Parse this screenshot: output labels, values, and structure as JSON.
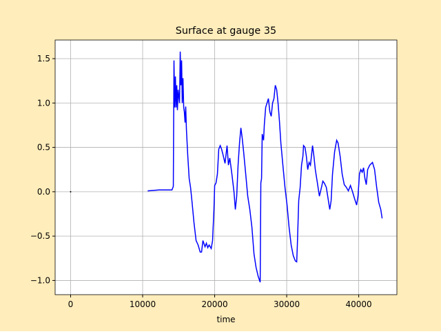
{
  "chart_data": {
    "type": "line",
    "title": "Surface at gauge 35",
    "x_label": "time",
    "xlim": [
      -2150,
      45300
    ],
    "ylim": [
      -1.16,
      1.71
    ],
    "xticks": [
      0,
      10000,
      20000,
      30000,
      40000
    ],
    "yticks": [
      {
        "value": -1.0,
        "label": "−1.0"
      },
      {
        "value": -0.5,
        "label": "−0.5"
      },
      {
        "value": 0.0,
        "label": "0.0"
      },
      0.5,
      {
        "value": 1.0,
        "label": "1.0"
      },
      1.5
    ],
    "grid": true,
    "series": [
      {
        "color": "#0000ff",
        "x": [
          10700,
          12250,
          13780,
          14070,
          14260,
          14350,
          14450,
          14550,
          14640,
          14740,
          14830,
          14930,
          15120,
          15220,
          15310,
          15410,
          15500,
          15600,
          15700,
          15790,
          15890,
          15980,
          16080,
          16270,
          16460,
          16650,
          16840,
          17130,
          17420,
          17700,
          17990,
          18180,
          18370,
          18660,
          18850,
          19040,
          19230,
          19520,
          19710,
          19900,
          20000,
          20190,
          20380,
          20570,
          20770,
          20960,
          21150,
          21440,
          21720,
          21910,
          22100,
          22390,
          22680,
          22870,
          23060,
          23250,
          23450,
          23640,
          23830,
          24020,
          24310,
          24590,
          24880,
          25170,
          25460,
          25740,
          26030,
          26320,
          26410,
          26510,
          26600,
          26790,
          26890,
          27080,
          27270,
          27460,
          27660,
          27850,
          28040,
          28230,
          28420,
          28610,
          28800,
          28990,
          29190,
          29470,
          29760,
          30050,
          30330,
          30620,
          30910,
          31200,
          31390,
          31480,
          31670,
          31870,
          32060,
          32250,
          32340,
          32540,
          32730,
          32920,
          33110,
          33300,
          33590,
          33780,
          33970,
          34260,
          34540,
          34830,
          35020,
          35210,
          35500,
          35790,
          35980,
          36170,
          36360,
          36650,
          36940,
          37130,
          37420,
          37700,
          37990,
          38280,
          38560,
          38850,
          39140,
          39430,
          39710,
          39900,
          40100,
          40290,
          40480,
          40670,
          40860,
          41050,
          41240,
          41530,
          41910,
          42200,
          42490,
          42780,
          43060,
          43250
        ],
        "values": [
          0.01,
          0.02,
          0.02,
          0.02,
          0.06,
          1.48,
          0.95,
          1.3,
          0.95,
          1.2,
          0.92,
          1.15,
          1.0,
          1.58,
          1.2,
          1.48,
          1.0,
          1.28,
          0.95,
          0.9,
          0.78,
          0.96,
          0.7,
          0.4,
          0.15,
          0.05,
          -0.1,
          -0.35,
          -0.55,
          -0.6,
          -0.68,
          -0.68,
          -0.55,
          -0.62,
          -0.58,
          -0.63,
          -0.6,
          -0.64,
          -0.55,
          -0.2,
          0.07,
          0.1,
          0.2,
          0.48,
          0.52,
          0.48,
          0.42,
          0.32,
          0.52,
          0.3,
          0.38,
          0.2,
          0.0,
          -0.2,
          -0.05,
          0.3,
          0.55,
          0.72,
          0.6,
          0.45,
          0.2,
          -0.05,
          -0.2,
          -0.4,
          -0.7,
          -0.85,
          -0.95,
          -1.02,
          0.1,
          0.15,
          0.65,
          0.58,
          0.75,
          0.95,
          1.0,
          1.05,
          0.9,
          0.85,
          1.0,
          1.05,
          1.2,
          1.15,
          1.0,
          0.8,
          0.55,
          0.3,
          0.05,
          -0.15,
          -0.4,
          -0.6,
          -0.72,
          -0.78,
          -0.79,
          -0.6,
          -0.1,
          0.05,
          0.3,
          0.4,
          0.52,
          0.5,
          0.4,
          0.25,
          0.33,
          0.3,
          0.52,
          0.4,
          0.25,
          0.1,
          -0.05,
          0.05,
          0.12,
          0.1,
          0.05,
          -0.1,
          -0.2,
          -0.1,
          0.2,
          0.45,
          0.58,
          0.55,
          0.4,
          0.2,
          0.08,
          0.05,
          0.01,
          0.07,
          0.0,
          -0.08,
          -0.15,
          -0.05,
          0.2,
          0.25,
          0.22,
          0.27,
          0.15,
          0.08,
          0.25,
          0.3,
          0.33,
          0.25,
          0.05,
          -0.12,
          -0.2,
          -0.3
        ]
      },
      {
        "color": "#000000",
        "x": [
          0
        ],
        "values": [
          0
        ]
      }
    ]
  }
}
